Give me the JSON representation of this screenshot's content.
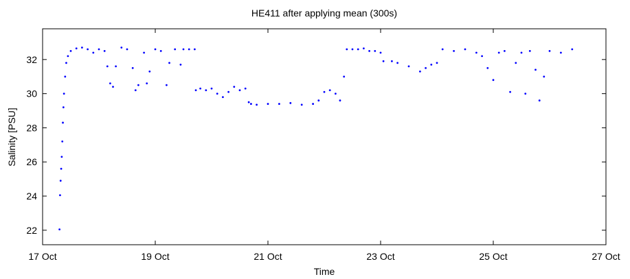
{
  "chart_data": {
    "type": "scatter",
    "title": "HE411 after applying mean (300s)",
    "xlabel": "Time",
    "ylabel": "Salinity [PSU]",
    "color": "#0000ff",
    "x": [
      17.3,
      17.31,
      17.32,
      17.33,
      17.34,
      17.35,
      17.36,
      17.37,
      17.38,
      17.4,
      17.42,
      17.45,
      17.5,
      17.6,
      17.7,
      17.8,
      17.9,
      18.0,
      18.1,
      18.15,
      18.2,
      18.25,
      18.3,
      18.4,
      18.5,
      18.6,
      18.65,
      18.7,
      18.8,
      18.85,
      18.9,
      19.0,
      19.1,
      19.2,
      19.25,
      19.35,
      19.45,
      19.5,
      19.6,
      19.7,
      19.72,
      19.8,
      19.9,
      20.0,
      20.1,
      20.2,
      20.3,
      20.4,
      20.5,
      20.6,
      20.66,
      20.7,
      20.8,
      21.0,
      21.2,
      21.4,
      21.6,
      21.8,
      21.9,
      22.0,
      22.1,
      22.2,
      22.28,
      22.35,
      22.4,
      22.5,
      22.6,
      22.7,
      22.8,
      22.9,
      23.0,
      23.05,
      23.2,
      23.3,
      23.5,
      23.7,
      23.8,
      23.9,
      24.0,
      24.1,
      24.3,
      24.5,
      24.7,
      24.8,
      24.9,
      25.0,
      25.1,
      25.2,
      25.3,
      25.4,
      25.5,
      25.57,
      25.65,
      25.75,
      25.82,
      25.9,
      26.0,
      26.2,
      26.4
    ],
    "values": [
      22.05,
      24.05,
      24.9,
      25.6,
      26.3,
      27.2,
      28.3,
      29.2,
      30.0,
      31.0,
      31.8,
      32.2,
      32.5,
      32.65,
      32.7,
      32.6,
      32.4,
      32.6,
      32.5,
      31.6,
      30.6,
      30.4,
      31.6,
      32.7,
      32.6,
      31.5,
      30.2,
      30.5,
      32.4,
      30.6,
      31.3,
      32.6,
      32.5,
      30.5,
      31.8,
      32.6,
      31.7,
      32.6,
      32.6,
      32.6,
      30.2,
      30.3,
      30.2,
      30.3,
      30.0,
      29.8,
      30.1,
      30.4,
      30.2,
      30.3,
      29.5,
      29.4,
      29.35,
      29.4,
      29.4,
      29.45,
      29.35,
      29.4,
      29.6,
      30.1,
      30.2,
      30.0,
      29.6,
      31.0,
      32.6,
      32.6,
      32.6,
      32.65,
      32.5,
      32.5,
      32.4,
      31.9,
      31.9,
      31.8,
      31.6,
      31.3,
      31.5,
      31.7,
      31.8,
      32.6,
      32.5,
      32.6,
      32.4,
      32.2,
      31.5,
      30.8,
      32.4,
      32.5,
      30.1,
      31.8,
      32.4,
      30.0,
      32.5,
      31.4,
      29.6,
      31.0,
      32.5,
      32.4,
      32.6
    ],
    "xlim": [
      17,
      27
    ],
    "xticks": [
      {
        "value": 17,
        "label": "17 Oct"
      },
      {
        "value": 19,
        "label": "19 Oct"
      },
      {
        "value": 21,
        "label": "21 Oct"
      },
      {
        "value": 23,
        "label": "23 Oct"
      },
      {
        "value": 25,
        "label": "25 Oct"
      },
      {
        "value": 27,
        "label": "27 Oct"
      }
    ],
    "ylim": [
      21.15,
      33.8
    ],
    "yticks": [
      22,
      24,
      26,
      28,
      30,
      32
    ],
    "grid": false
  }
}
